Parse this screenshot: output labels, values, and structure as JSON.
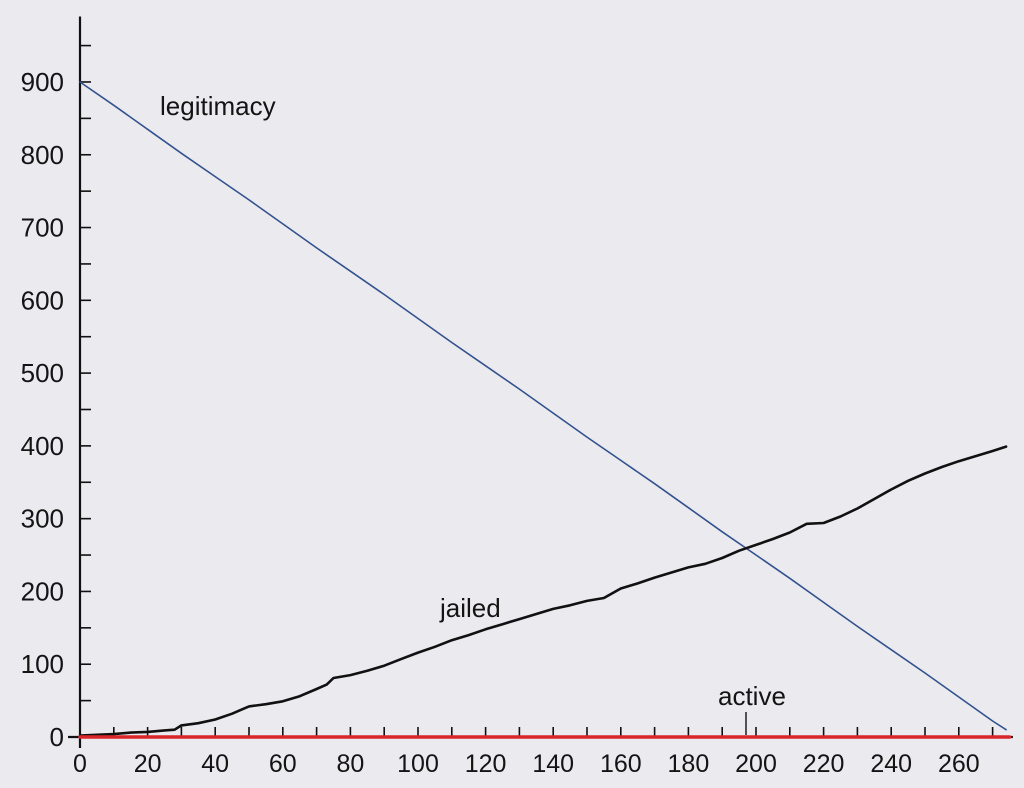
{
  "chart_data": {
    "type": "line",
    "xlim": [
      0,
      276
    ],
    "ylim": [
      0,
      990
    ],
    "x_ticks": [
      0,
      20,
      40,
      60,
      80,
      100,
      120,
      140,
      160,
      180,
      200,
      220,
      240,
      260
    ],
    "x_tick_labels": [
      "0",
      "20",
      "40",
      "60",
      "80",
      "100",
      "120",
      "140",
      "160",
      "180",
      "200",
      "220",
      "240",
      "260"
    ],
    "y_ticks": [
      0,
      100,
      200,
      300,
      400,
      500,
      600,
      700,
      800,
      900
    ],
    "y_tick_labels": [
      "0",
      "100",
      "200",
      "300",
      "400",
      "500",
      "600",
      "700",
      "800",
      "900"
    ],
    "grid": false,
    "legend": "none",
    "series": [
      {
        "name": "legitimacy",
        "color": "#33528f",
        "x": [
          0,
          10,
          20,
          30,
          40,
          50,
          60,
          70,
          80,
          90,
          100,
          110,
          120,
          130,
          140,
          150,
          160,
          170,
          180,
          190,
          200,
          210,
          220,
          230,
          240,
          250,
          260,
          270,
          274
        ],
        "y": [
          900,
          868,
          835,
          802,
          770,
          738,
          705,
          672,
          640,
          608,
          575,
          542,
          510,
          478,
          445,
          412,
          380,
          348,
          315,
          282,
          250,
          218,
          185,
          152,
          120,
          88,
          55,
          22,
          10
        ]
      },
      {
        "name": "jailed",
        "color": "#111111",
        "x": [
          0,
          5,
          10,
          15,
          20,
          25,
          28,
          30,
          35,
          40,
          45,
          48,
          50,
          55,
          60,
          65,
          70,
          73,
          75,
          80,
          85,
          90,
          95,
          100,
          105,
          110,
          115,
          120,
          125,
          130,
          135,
          140,
          145,
          150,
          155,
          160,
          165,
          170,
          175,
          180,
          185,
          190,
          195,
          200,
          205,
          210,
          215,
          220,
          225,
          230,
          235,
          240,
          245,
          250,
          255,
          260,
          265,
          270,
          274
        ],
        "y": [
          2,
          3,
          4,
          6,
          7,
          9,
          10,
          16,
          19,
          24,
          32,
          38,
          42,
          45,
          49,
          56,
          66,
          72,
          81,
          85,
          91,
          98,
          107,
          116,
          124,
          133,
          140,
          148,
          155,
          162,
          169,
          176,
          181,
          187,
          191,
          204,
          211,
          219,
          226,
          233,
          238,
          246,
          256,
          264,
          272,
          281,
          293,
          294,
          303,
          314,
          327,
          340,
          352,
          362,
          371,
          379,
          386,
          393,
          399
        ]
      },
      {
        "name": "active",
        "color": "#d8262b",
        "x": [
          0,
          50,
          100,
          150,
          200,
          250,
          275
        ],
        "y": [
          0,
          0,
          0,
          0,
          0,
          0,
          0
        ]
      }
    ]
  }
}
